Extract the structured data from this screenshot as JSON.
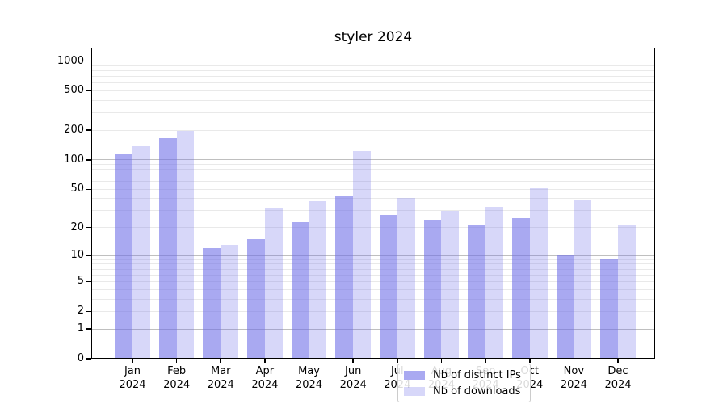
{
  "window": {
    "title": "styler 2024"
  },
  "colors": {
    "bar_distinct_ips": "rgba(109,109,232,0.59)",
    "bar_downloads": "rgba(109,109,232,0.27)",
    "grid_major": "#bfbfbf",
    "grid_minor": "#e9e9e9",
    "spine": "#000000",
    "legend_border": "#cccccc",
    "legend_background": "rgba(255,255,255,0.85)",
    "text": "#000000"
  },
  "chart_data": {
    "type": "bar",
    "title": "styler 2024",
    "categories": [
      "Jan 2024",
      "Feb 2024",
      "Mar 2024",
      "Apr 2024",
      "May 2024",
      "Jun 2024",
      "Jul 2024",
      "Aug 2024",
      "Sep 2024",
      "Oct 2024",
      "Nov 2024",
      "Dec 2024"
    ],
    "series": [
      {
        "name": "Nb of distinct IPs",
        "color_key": "bar_distinct_ips",
        "values": [
          113,
          165,
          12,
          15,
          23,
          42,
          27,
          24,
          21,
          25,
          10,
          9
        ]
      },
      {
        "name": "Nb of downloads",
        "color_key": "bar_downloads",
        "values": [
          138,
          196,
          13,
          32,
          38,
          122,
          41,
          30,
          33,
          51,
          39,
          21
        ]
      }
    ],
    "xlabel": "",
    "ylabel": "",
    "y_axis": {
      "scale": "log10(value+1)",
      "ylim": [
        0,
        1365
      ],
      "tick_values": [
        0,
        1,
        2,
        5,
        10,
        20,
        50,
        100,
        200,
        500,
        1000
      ],
      "major_grid_values": [
        1,
        10,
        100,
        1000
      ],
      "minor_grid_values": [
        2,
        3,
        4,
        5,
        6,
        7,
        8,
        9,
        20,
        30,
        40,
        50,
        60,
        70,
        80,
        90,
        200,
        300,
        400,
        500,
        600,
        700,
        800,
        900
      ]
    },
    "grid": "on",
    "legend_position": "lower center"
  }
}
